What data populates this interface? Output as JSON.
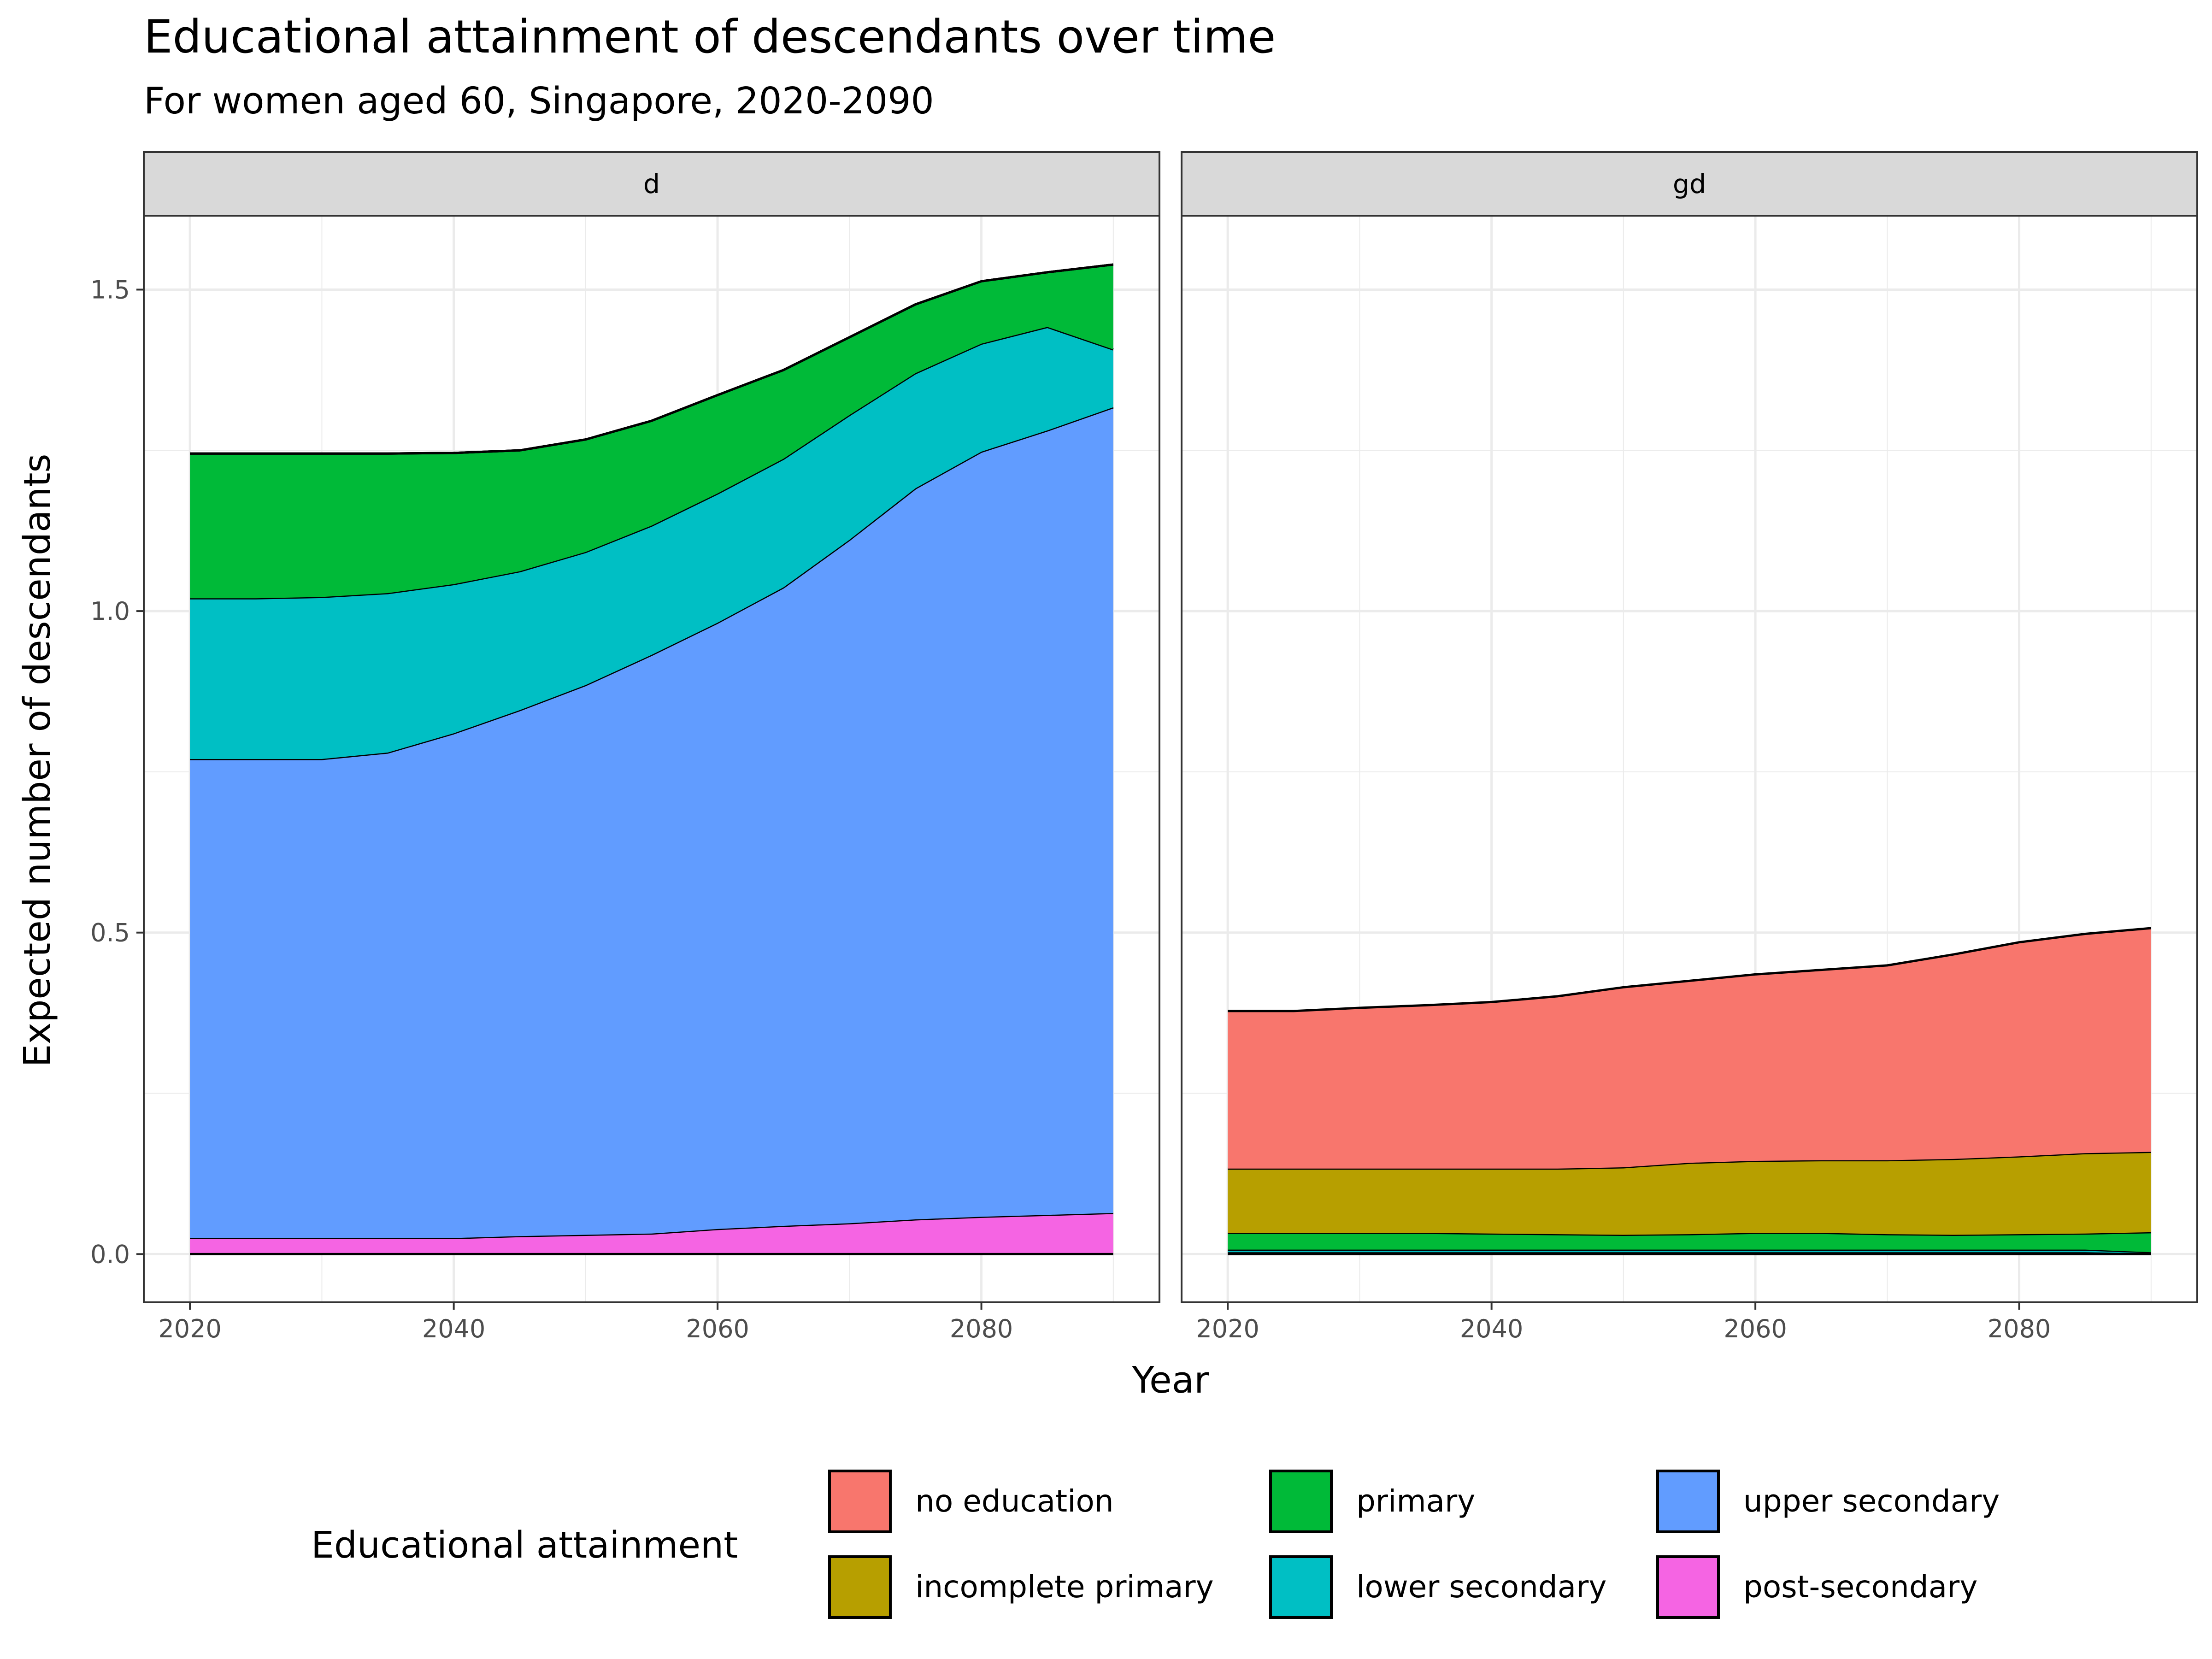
{
  "chart_data": {
    "type": "area",
    "title": "Educational attainment of descendants over time",
    "subtitle": "For women aged 60, Singapore, 2020-2090",
    "xlabel": "Year",
    "ylabel": "Expected number of descendants",
    "xlim": [
      2016.5,
      2093.5
    ],
    "ylim": [
      -0.075,
      1.615
    ],
    "x_ticks": [
      2020,
      2040,
      2060,
      2080
    ],
    "x_tick_labels": [
      "2020",
      "2040",
      "2060",
      "2080"
    ],
    "y_ticks": [
      0,
      0.5,
      1,
      1.5
    ],
    "y_tick_labels": [
      "0.0",
      "0.5",
      "1.0",
      "1.5"
    ],
    "stacked": true,
    "grid": true,
    "legend": {
      "title": "Educational attainment",
      "position": "bottom",
      "entries": [
        {
          "label": "no education",
          "color": "#F8766D"
        },
        {
          "label": "incomplete primary",
          "color": "#B79F00"
        },
        {
          "label": "primary",
          "color": "#00BA38"
        },
        {
          "label": "lower secondary",
          "color": "#00BFC4"
        },
        {
          "label": "upper secondary",
          "color": "#619CFF"
        },
        {
          "label": "post-secondary",
          "color": "#F564E3"
        }
      ]
    },
    "panels": [
      {
        "strip": "d",
        "x": [
          2020,
          2025,
          2030,
          2035,
          2040,
          2045,
          2050,
          2055,
          2060,
          2065,
          2070,
          2075,
          2080,
          2085,
          2090
        ],
        "series": [
          {
            "name": "post-secondary",
            "color": "#F564E3",
            "values": [
              0.025,
              0.025,
              0.025,
              0.025,
              0.025,
              0.028,
              0.03,
              0.032,
              0.039,
              0.044,
              0.048,
              0.054,
              0.058,
              0.061,
              0.064
            ]
          },
          {
            "name": "upper secondary",
            "color": "#619CFF",
            "values": [
              0.745,
              0.745,
              0.745,
              0.755,
              0.785,
              0.818,
              0.855,
              0.9,
              0.943,
              0.993,
              1.063,
              1.137,
              1.19,
              1.22,
              1.253
            ]
          },
          {
            "name": "lower secondary",
            "color": "#00BFC4",
            "values": [
              0.25,
              0.25,
              0.252,
              0.248,
              0.232,
              0.216,
              0.207,
              0.201,
              0.201,
              0.2,
              0.194,
              0.179,
              0.168,
              0.161,
              0.09
            ]
          },
          {
            "name": "primary",
            "color": "#00BA38",
            "values": [
              0.225,
              0.225,
              0.223,
              0.217,
              0.204,
              0.188,
              0.175,
              0.163,
              0.153,
              0.138,
              0.121,
              0.107,
              0.097,
              0.085,
              0.132
            ]
          },
          {
            "name": "incomplete primary",
            "color": "#B79F00",
            "values": [
              0,
              0,
              0,
              0,
              0,
              0,
              0,
              0,
              0,
              0,
              0,
              0,
              0,
              0,
              0
            ]
          },
          {
            "name": "no education",
            "color": "#F8766D",
            "values": [
              0,
              0,
              0,
              0,
              0,
              0,
              0,
              0,
              0,
              0,
              0,
              0,
              0,
              0,
              0
            ]
          }
        ]
      },
      {
        "strip": "gd",
        "x": [
          2020,
          2025,
          2030,
          2035,
          2040,
          2045,
          2050,
          2055,
          2060,
          2065,
          2070,
          2075,
          2080,
          2085,
          2090
        ],
        "series": [
          {
            "name": "post-secondary",
            "color": "#F564E3",
            "values": [
              0,
              0,
              0,
              0,
              0,
              0,
              0,
              0,
              0,
              0,
              0,
              0,
              0,
              0,
              0
            ]
          },
          {
            "name": "upper secondary",
            "color": "#619CFF",
            "values": [
              0.003,
              0.003,
              0.003,
              0.003,
              0.003,
              0.003,
              0.003,
              0.003,
              0.003,
              0.003,
              0.003,
              0.003,
              0.003,
              0.003,
              0.001
            ]
          },
          {
            "name": "lower secondary",
            "color": "#00BFC4",
            "values": [
              0.004,
              0.004,
              0.004,
              0.004,
              0.004,
              0.004,
              0.004,
              0.004,
              0.004,
              0.004,
              0.004,
              0.004,
              0.004,
              0.004,
              0.002
            ]
          },
          {
            "name": "primary",
            "color": "#00BA38",
            "values": [
              0.026,
              0.026,
              0.026,
              0.026,
              0.025,
              0.024,
              0.023,
              0.024,
              0.026,
              0.026,
              0.024,
              0.023,
              0.024,
              0.025,
              0.031
            ]
          },
          {
            "name": "incomplete primary",
            "color": "#B79F00",
            "values": [
              0.1,
              0.1,
              0.1,
              0.1,
              0.101,
              0.102,
              0.105,
              0.111,
              0.112,
              0.113,
              0.115,
              0.118,
              0.121,
              0.125,
              0.125
            ]
          },
          {
            "name": "no education",
            "color": "#F8766D",
            "values": [
              0.245,
              0.245,
              0.25,
              0.254,
              0.259,
              0.268,
              0.28,
              0.283,
              0.29,
              0.296,
              0.303,
              0.318,
              0.333,
              0.341,
              0.348
            ]
          }
        ]
      }
    ]
  }
}
